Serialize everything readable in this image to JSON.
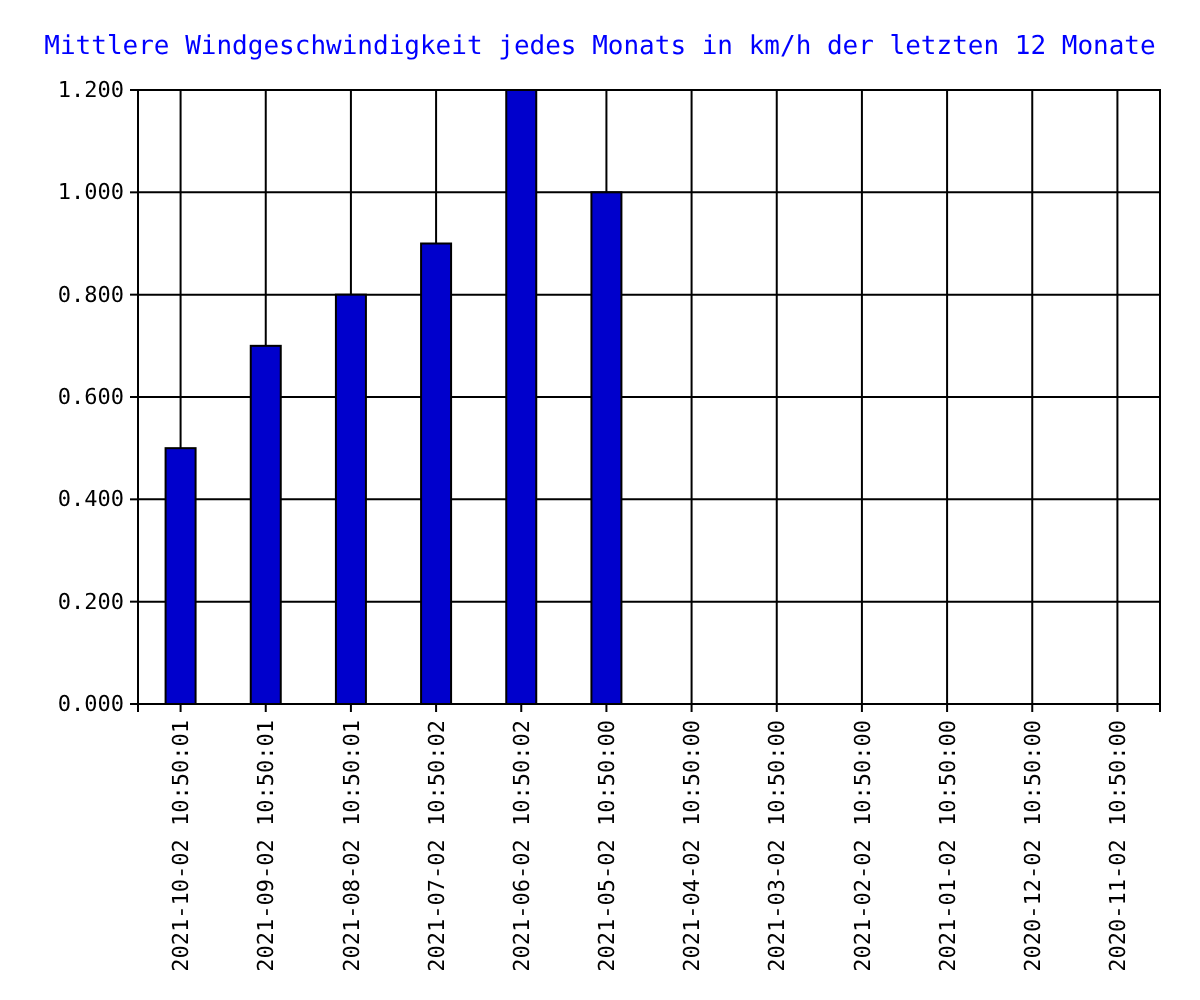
{
  "chart_data": {
    "type": "bar",
    "title": "Mittlere Windgeschwindigkeit jedes Monats in km/h der letzten 12 Monate",
    "categories": [
      "2021-10-02 10:50:01",
      "2021-09-02 10:50:01",
      "2021-08-02 10:50:01",
      "2021-07-02 10:50:02",
      "2021-06-02 10:50:02",
      "2021-05-02 10:50:00",
      "2021-04-02 10:50:00",
      "2021-03-02 10:50:00",
      "2021-02-02 10:50:00",
      "2021-01-02 10:50:00",
      "2020-12-02 10:50:00",
      "2020-11-02 10:50:00"
    ],
    "values": [
      0.5,
      0.7,
      0.8,
      0.9,
      1.2,
      1.0,
      null,
      null,
      null,
      null,
      null,
      null
    ],
    "color": "#0000cc",
    "ylim": [
      0,
      1.2
    ],
    "yticks": [
      {
        "value": 0,
        "label": "0.000"
      },
      {
        "value": 0.2,
        "label": "0.200"
      },
      {
        "value": 0.4,
        "label": "0.400"
      },
      {
        "value": 0.6,
        "label": "0.600"
      },
      {
        "value": 0.8,
        "label": "0.800"
      },
      {
        "value": 1,
        "label": "1.000"
      },
      {
        "value": 1.2,
        "label": "1.200"
      }
    ],
    "grid": true
  }
}
